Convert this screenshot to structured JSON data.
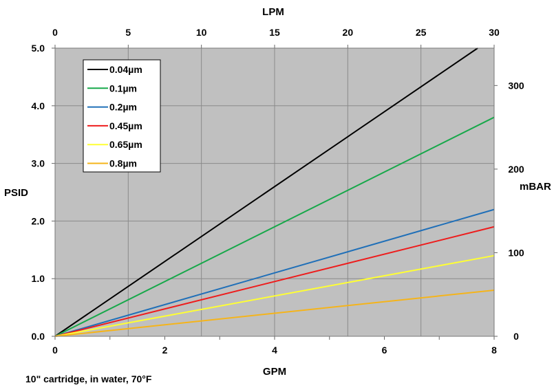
{
  "chart_data": {
    "type": "line",
    "title": "",
    "xlabel": "GPM",
    "ylabel": "PSID",
    "x2label": "LPM",
    "y2label": "mBAR",
    "footnote": "10\" cartridge, in water, 70°F",
    "xlim": [
      0,
      8
    ],
    "ylim": [
      0,
      5
    ],
    "x2lim": [
      0,
      30
    ],
    "y2lim": [
      0,
      344.7
    ],
    "x_ticks": [
      "0",
      "2",
      "4",
      "6",
      "8"
    ],
    "y_ticks": [
      "0.0",
      "1.0",
      "2.0",
      "3.0",
      "4.0",
      "5.0"
    ],
    "x2_ticks": [
      "0",
      "5",
      "10",
      "15",
      "20",
      "25",
      "30"
    ],
    "y2_ticks": [
      "0",
      "100",
      "200",
      "300"
    ],
    "grid": true,
    "legend_position": "top-left",
    "background_color": "#c0c0c0",
    "series": [
      {
        "name": "0.04µm",
        "color": "#000000",
        "x": [
          0,
          7.7
        ],
        "y": [
          0,
          5.0
        ]
      },
      {
        "name": "0.1µm",
        "color": "#17a84a",
        "x": [
          0,
          8
        ],
        "y": [
          0,
          3.8
        ]
      },
      {
        "name": "0.2µm",
        "color": "#1f6fb8",
        "x": [
          0,
          8
        ],
        "y": [
          0,
          2.2
        ]
      },
      {
        "name": "0.45µm",
        "color": "#ee1c1c",
        "x": [
          0,
          8
        ],
        "y": [
          0,
          1.9
        ]
      },
      {
        "name": "0.65µm",
        "color": "#ffff33",
        "x": [
          0,
          8
        ],
        "y": [
          0,
          1.4
        ]
      },
      {
        "name": "0.8µm",
        "color": "#f5b41a",
        "x": [
          0,
          8
        ],
        "y": [
          0,
          0.8
        ]
      }
    ]
  }
}
